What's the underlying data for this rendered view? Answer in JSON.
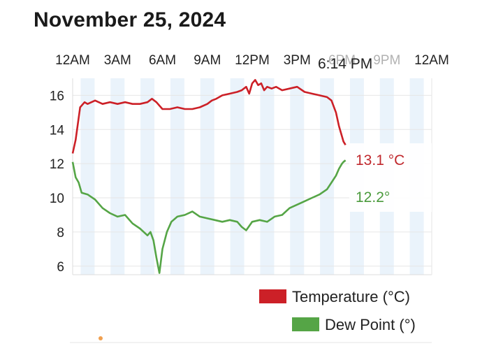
{
  "date_title": "November 25, 2024",
  "now_label": "6:14 PM",
  "colors": {
    "temperature": "#cc2027",
    "dew_point": "#55a546",
    "night_band": "#eaf3fb",
    "grid": "#e6e6e6",
    "marker": "#f0a050"
  },
  "chart_data": {
    "type": "line",
    "x_unit": "hour of day",
    "xlim": [
      0,
      24
    ],
    "ylim": [
      5.5,
      17
    ],
    "x_tick_labels": [
      "12AM",
      "3AM",
      "6AM",
      "9AM",
      "12PM",
      "3PM",
      "6PM",
      "9PM",
      "12AM"
    ],
    "x_tick_hours": [
      0,
      3,
      6,
      9,
      12,
      15,
      18,
      21,
      24
    ],
    "y_ticks": [
      6,
      8,
      10,
      12,
      14,
      16
    ],
    "grid": true,
    "legend_position": "bottom-right",
    "series": [
      {
        "name": "Temperature (°C)",
        "current_readout": "13.1 °C",
        "x": [
          0,
          0.2,
          0.5,
          0.8,
          1,
          1.5,
          2,
          2.5,
          3,
          3.5,
          4,
          4.5,
          5,
          5.3,
          5.6,
          5.8,
          6,
          6.5,
          7,
          7.5,
          8,
          8.5,
          9,
          9.3,
          9.6,
          10,
          10.5,
          11,
          11.3,
          11.6,
          11.8,
          12,
          12.2,
          12.4,
          12.6,
          12.8,
          13,
          13.3,
          13.6,
          14,
          14.5,
          15,
          15.5,
          16,
          16.5,
          17,
          17.3,
          17.6,
          17.8,
          18,
          18.1,
          18.24
        ],
        "y": [
          12.6,
          13.4,
          15.3,
          15.6,
          15.5,
          15.7,
          15.5,
          15.6,
          15.5,
          15.6,
          15.5,
          15.5,
          15.6,
          15.8,
          15.6,
          15.4,
          15.2,
          15.2,
          15.3,
          15.2,
          15.2,
          15.3,
          15.5,
          15.7,
          15.8,
          16.0,
          16.1,
          16.2,
          16.3,
          16.5,
          16.1,
          16.7,
          16.9,
          16.6,
          16.7,
          16.3,
          16.5,
          16.4,
          16.5,
          16.3,
          16.4,
          16.5,
          16.2,
          16.1,
          16.0,
          15.9,
          15.7,
          15.0,
          14.2,
          13.6,
          13.3,
          13.1
        ]
      },
      {
        "name": "Dew Point (°)",
        "current_readout": "12.2°",
        "x": [
          0,
          0.2,
          0.4,
          0.6,
          1,
          1.5,
          2,
          2.5,
          3,
          3.5,
          4,
          4.5,
          5,
          5.2,
          5.4,
          5.6,
          5.8,
          6,
          6.3,
          6.6,
          7,
          7.5,
          8,
          8.5,
          9,
          9.5,
          10,
          10.5,
          11,
          11.3,
          11.6,
          12,
          12.5,
          13,
          13.5,
          14,
          14.5,
          15,
          15.5,
          16,
          16.5,
          17,
          17.3,
          17.6,
          17.8,
          18,
          18.1,
          18.24
        ],
        "y": [
          12.1,
          11.2,
          10.9,
          10.3,
          10.2,
          9.9,
          9.4,
          9.1,
          8.9,
          9.0,
          8.5,
          8.2,
          7.8,
          8.0,
          7.5,
          6.5,
          5.6,
          7.0,
          8.0,
          8.6,
          8.9,
          9.0,
          9.2,
          8.9,
          8.8,
          8.7,
          8.6,
          8.7,
          8.6,
          8.3,
          8.1,
          8.6,
          8.7,
          8.6,
          8.9,
          9.0,
          9.4,
          9.6,
          9.8,
          10.0,
          10.2,
          10.5,
          10.9,
          11.3,
          11.7,
          12.0,
          12.1,
          12.2
        ]
      }
    ]
  }
}
